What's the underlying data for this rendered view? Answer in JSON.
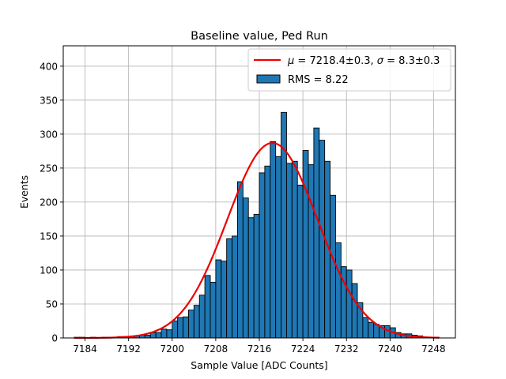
{
  "chart_data": {
    "type": "bar",
    "title": "Baseline value, Ped Run",
    "xlabel": "Sample Value [ADC Counts]",
    "ylabel": "Events",
    "xlim": [
      7180,
      7252
    ],
    "ylim": [
      0,
      430
    ],
    "grid": true,
    "legend_position": "top-right",
    "x_ticks": [
      7184,
      7192,
      7200,
      7208,
      7216,
      7224,
      7232,
      7240,
      7248
    ],
    "y_ticks": [
      0,
      50,
      100,
      150,
      200,
      250,
      300,
      350,
      400
    ],
    "histogram": {
      "name": "RMS = 8.22",
      "color": "#1f77b4",
      "edge_color": "#000000",
      "bin_width": 1,
      "bin_starts": [
        7182,
        7183,
        7184,
        7185,
        7186,
        7187,
        7188,
        7189,
        7190,
        7191,
        7192,
        7193,
        7194,
        7195,
        7196,
        7197,
        7198,
        7199,
        7200,
        7201,
        7202,
        7203,
        7204,
        7205,
        7206,
        7207,
        7208,
        7209,
        7210,
        7211,
        7212,
        7213,
        7214,
        7215,
        7216,
        7217,
        7218,
        7219,
        7220,
        7221,
        7222,
        7223,
        7224,
        7225,
        7226,
        7227,
        7228,
        7229,
        7230,
        7231,
        7232,
        7233,
        7234,
        7235,
        7236,
        7237,
        7238,
        7239,
        7240,
        7241,
        7242,
        7243,
        7244,
        7245,
        7246,
        7247,
        7248
      ],
      "counts": [
        1,
        1,
        0,
        1,
        0,
        1,
        1,
        1,
        2,
        2,
        2,
        3,
        4,
        4,
        8,
        8,
        13,
        12,
        25,
        30,
        31,
        41,
        48,
        63,
        92,
        82,
        115,
        113,
        146,
        150,
        230,
        206,
        177,
        182,
        243,
        253,
        289,
        267,
        332,
        257,
        260,
        225,
        276,
        255,
        309,
        291,
        260,
        210,
        140,
        105,
        100,
        80,
        52,
        30,
        23,
        20,
        18,
        18,
        15,
        8,
        6,
        6,
        4,
        3,
        1,
        1,
        1
      ]
    },
    "fit": {
      "name_prefix": "μ = 7218.4±0.3, ",
      "name_sigma_symbol": "σ",
      "name_suffix": " = 8.3±0.3",
      "type": "gaussian",
      "mu": 7218.4,
      "sigma": 8.3,
      "amplitude": 287,
      "x_range": [
        7182,
        7249
      ],
      "color": "#ee0000"
    }
  }
}
